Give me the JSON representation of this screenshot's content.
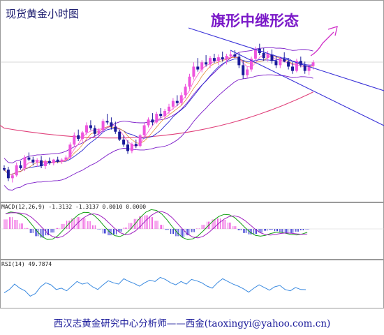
{
  "chart_data": [
    {
      "type": "candlestick",
      "title": "现货黄金小时图",
      "annotation": "旗形中继形态",
      "annotation_arrow": "up",
      "candles": [
        [
          40,
          44,
          36,
          38
        ],
        [
          38,
          42,
          22,
          26
        ],
        [
          26,
          33,
          20,
          30
        ],
        [
          30,
          48,
          28,
          44
        ],
        [
          44,
          50,
          38,
          40
        ],
        [
          40,
          58,
          36,
          55
        ],
        [
          55,
          62,
          50,
          52
        ],
        [
          52,
          56,
          44,
          48
        ],
        [
          48,
          54,
          42,
          51
        ],
        [
          51,
          57,
          40,
          43
        ],
        [
          43,
          52,
          39,
          50
        ],
        [
          50,
          55,
          45,
          47
        ],
        [
          47,
          53,
          44,
          52
        ],
        [
          52,
          56,
          47,
          49
        ],
        [
          49,
          54,
          46,
          52
        ],
        [
          52,
          58,
          49,
          55
        ],
        [
          55,
          76,
          53,
          73
        ],
        [
          73,
          90,
          70,
          86
        ],
        [
          86,
          94,
          78,
          81
        ],
        [
          81,
          92,
          77,
          90
        ],
        [
          90,
          104,
          86,
          100
        ],
        [
          100,
          107,
          93,
          96
        ],
        [
          96,
          100,
          85,
          88
        ],
        [
          88,
          96,
          84,
          93
        ],
        [
          93,
          109,
          90,
          106
        ],
        [
          106,
          116,
          101,
          104
        ],
        [
          104,
          111,
          94,
          98
        ],
        [
          98,
          105,
          88,
          91
        ],
        [
          91,
          94,
          78,
          80
        ],
        [
          80,
          86,
          70,
          73
        ],
        [
          73,
          79,
          60,
          64
        ],
        [
          64,
          76,
          61,
          74
        ],
        [
          74,
          80,
          68,
          71
        ],
        [
          71,
          88,
          69,
          86
        ],
        [
          86,
          103,
          84,
          100
        ],
        [
          100,
          111,
          97,
          108
        ],
        [
          108,
          117,
          100,
          104
        ],
        [
          104,
          119,
          102,
          116
        ],
        [
          116,
          124,
          110,
          113
        ],
        [
          113,
          123,
          108,
          120
        ],
        [
          120,
          130,
          116,
          126
        ],
        [
          126,
          138,
          122,
          134
        ],
        [
          134,
          142,
          127,
          131
        ],
        [
          131,
          146,
          128,
          142
        ],
        [
          142,
          158,
          138,
          154
        ],
        [
          154,
          172,
          150,
          168
        ],
        [
          168,
          188,
          164,
          182
        ],
        [
          182,
          194,
          175,
          178
        ],
        [
          178,
          191,
          174,
          188
        ],
        [
          188,
          198,
          182,
          185
        ],
        [
          185,
          197,
          180,
          194
        ],
        [
          194,
          200,
          187,
          190
        ],
        [
          190,
          199,
          184,
          195
        ],
        [
          195,
          203,
          189,
          192
        ],
        [
          192,
          200,
          185,
          197
        ],
        [
          197,
          204,
          193,
          199
        ],
        [
          199,
          205,
          194,
          196
        ],
        [
          196,
          201,
          180,
          184
        ],
        [
          184,
          190,
          165,
          170
        ],
        [
          170,
          182,
          166,
          178
        ],
        [
          178,
          196,
          175,
          193
        ],
        [
          193,
          210,
          190,
          207
        ],
        [
          207,
          214,
          198,
          201
        ],
        [
          201,
          208,
          190,
          194
        ],
        [
          194,
          204,
          189,
          199
        ],
        [
          199,
          206,
          186,
          190
        ],
        [
          190,
          197,
          180,
          184
        ],
        [
          184,
          196,
          180,
          193
        ],
        [
          193,
          202,
          188,
          189
        ],
        [
          189,
          194,
          178,
          182
        ],
        [
          182,
          188,
          172,
          176
        ],
        [
          176,
          193,
          174,
          190
        ],
        [
          190,
          196,
          181,
          184
        ],
        [
          184,
          189,
          172,
          176
        ],
        [
          176,
          186,
          170,
          183
        ],
        [
          183,
          191,
          178,
          188
        ]
      ],
      "sma_fast": "pink",
      "sma_slow": "blue",
      "long_ma_color": "#e0407a",
      "band_color": "#7a18c8",
      "channel_color": "#3a32d8"
    },
    {
      "type": "bar",
      "label": "MACD(12,26,9) -1.3132 -1.3137 0.0010 0.0000",
      "histogram": [
        2.1,
        2.6,
        2.0,
        1.2,
        0.2,
        -0.9,
        -1.6,
        -1.9,
        -1.4,
        -0.8,
        0.2,
        1.1,
        1.8,
        2.3,
        2.6,
        2.4,
        1.7,
        0.8,
        -0.1,
        -1.0,
        -1.4,
        -1.2,
        -0.6,
        0.3,
        1.3,
        2.2,
        2.8,
        3.0,
        2.6,
        1.8,
        0.9,
        -0.2,
        -1.1,
        -1.6,
        -1.8,
        -1.4,
        -0.7,
        0.1,
        0.9,
        1.6,
        2.1,
        2.3,
        2.0,
        1.4,
        0.6,
        -0.3,
        -0.9,
        -1.2,
        -1.1,
        -0.8,
        -0.4,
        -0.2,
        -0.5,
        -0.8,
        -1.0,
        -0.9,
        -0.6,
        -0.3,
        -0.1
      ],
      "macd_color": "#14a014",
      "signal_color": "#a020c0"
    },
    {
      "type": "line",
      "label": "RSI(14) 49.7874",
      "values": [
        45,
        50,
        58,
        52,
        48,
        40,
        44,
        54,
        60,
        57,
        50,
        52,
        48,
        55,
        62,
        58,
        60,
        54,
        50,
        57,
        63,
        60,
        58,
        66,
        62,
        59,
        55,
        60,
        64,
        62,
        68,
        65,
        60,
        57,
        62,
        58,
        65,
        63,
        60,
        55,
        52,
        60,
        66,
        62,
        58,
        55,
        51,
        46,
        52,
        57,
        53,
        49,
        54,
        56,
        50,
        48,
        53,
        50,
        49.8
      ],
      "line_color": "#3a8ae0"
    }
  ],
  "footer": "西汉志黄金研究中心分析师——西金(taoxingyi@yahoo.com.cn)"
}
